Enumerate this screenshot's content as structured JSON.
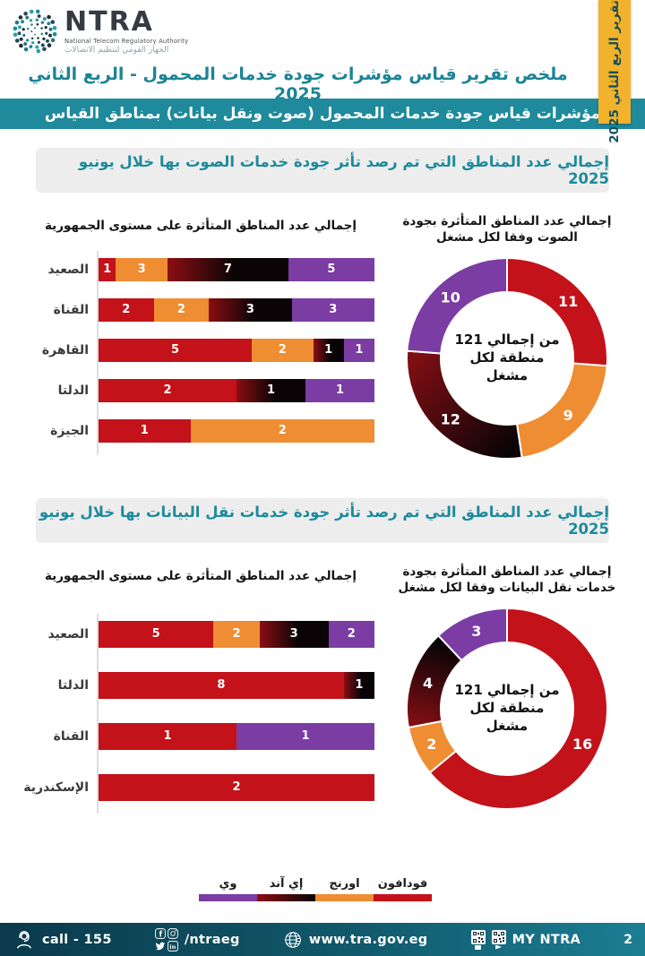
{
  "header": {
    "logo_name": "NTRA",
    "logo_sub_en": "National Telecom Regulatory Authority",
    "logo_sub_ar": "الجهاز القومي لتنظيم الاتصالات",
    "ribbon": "تقرير الربع الثاني 2025",
    "title": "ملخص تقرير قياس مؤشرات جودة خدمات المحمول - الربع الثاني 2025",
    "banner": "مؤشرات قياس جودة خدمات المحمول (صوت ونقل بيانات)  بمناطق القياس"
  },
  "operators": [
    {
      "id": "vodafone",
      "label": "فودافون",
      "color": "#c3121a"
    },
    {
      "id": "orange",
      "label": "اورنج",
      "color": "#ef8d33"
    },
    {
      "id": "eand",
      "label": "إي آند",
      "color_from": "#8b0e13",
      "color_to": "#0a0406"
    },
    {
      "id": "we",
      "label": "وي",
      "color": "#7b3da3"
    }
  ],
  "sections": [
    {
      "banner": "إجمالي عدد المناطق التي تم رصد تأثر جودة خدمات الصوت بها خلال يونيو 2025",
      "bar_title": "إجمالي عدد المناطق المتأثرة على مستوى الجمهورية",
      "donut_title": "إجمالي عدد المناطق المتأثرة بجودة\nالصوت وفقا لكل مشغل",
      "donut_center": "من إجمالي 121\nمنطقة لكل\nمشغل",
      "bars": [
        {
          "label": "الصعيد",
          "segs": [
            {
              "op": "vodafone",
              "v": 1
            },
            {
              "op": "orange",
              "v": 3
            },
            {
              "op": "eand",
              "v": 7
            },
            {
              "op": "we",
              "v": 5
            }
          ]
        },
        {
          "label": "القناة",
          "segs": [
            {
              "op": "vodafone",
              "v": 2
            },
            {
              "op": "orange",
              "v": 2
            },
            {
              "op": "eand",
              "v": 3
            },
            {
              "op": "we",
              "v": 3
            }
          ]
        },
        {
          "label": "القاهرة",
          "segs": [
            {
              "op": "vodafone",
              "v": 5
            },
            {
              "op": "orange",
              "v": 2
            },
            {
              "op": "eand",
              "v": 1
            },
            {
              "op": "we",
              "v": 1
            }
          ]
        },
        {
          "label": "الدلتا",
          "segs": [
            {
              "op": "vodafone",
              "v": 2
            },
            {
              "op": "eand",
              "v": 1
            },
            {
              "op": "we",
              "v": 1
            }
          ]
        },
        {
          "label": "الجيزة",
          "segs": [
            {
              "op": "vodafone",
              "v": 1
            },
            {
              "op": "orange",
              "v": 2
            }
          ]
        }
      ],
      "donut": [
        {
          "op": "vodafone",
          "v": 11
        },
        {
          "op": "orange",
          "v": 9
        },
        {
          "op": "eand",
          "v": 12,
          "grad": [
            "#0a0406",
            "#7d0e13"
          ]
        },
        {
          "op": "we",
          "v": 10
        }
      ]
    },
    {
      "banner": "إجمالي عدد المناطق التي تم رصد تأثر جودة خدمات نقل البيانات بها خلال يونيو 2025",
      "bar_title": "إجمالي عدد المناطق المتأثرة على مستوى الجمهورية",
      "donut_title": "إجمالي عدد المناطق المتأثرة بجودة\nخدمات نقل البيانات وفقا لكل مشغل",
      "donut_center": "من إجمالي 121\nمنطقة لكل\nمشغل",
      "bars": [
        {
          "label": "الصعيد",
          "segs": [
            {
              "op": "vodafone",
              "v": 5
            },
            {
              "op": "orange",
              "v": 2
            },
            {
              "op": "eand",
              "v": 3
            },
            {
              "op": "we",
              "v": 2
            }
          ]
        },
        {
          "label": "الدلتا",
          "segs": [
            {
              "op": "vodafone",
              "v": 8
            },
            {
              "op": "eand",
              "v": 1
            }
          ]
        },
        {
          "label": "القناة",
          "segs": [
            {
              "op": "vodafone",
              "v": 1
            },
            {
              "op": "we",
              "v": 1
            }
          ]
        },
        {
          "label": "الإسكندرية",
          "segs": [
            {
              "op": "vodafone",
              "v": 2
            }
          ]
        }
      ],
      "donut": [
        {
          "op": "vodafone",
          "v": 16
        },
        {
          "op": "orange",
          "v": 2
        },
        {
          "op": "eand",
          "v": 4,
          "grad": [
            "#7d0e13",
            "#0a0406"
          ]
        },
        {
          "op": "we",
          "v": 3
        }
      ]
    }
  ],
  "legend": [
    {
      "op": "we",
      "label": "وي"
    },
    {
      "op": "eand",
      "label": "إي آند"
    },
    {
      "op": "orange",
      "label": "اورنج"
    },
    {
      "op": "vodafone",
      "label": "فودافون"
    }
  ],
  "footer": {
    "call": "call - 155",
    "handle": "/ntraeg",
    "website": "www.tra.gov.eg",
    "app": "MY NTRA",
    "page": "2"
  },
  "chart_data": [
    {
      "type": "bar",
      "subtype": "stacked-horizontal-100pct",
      "title": "إجمالي عدد المناطق المتأثرة على مستوى الجمهورية",
      "group": "جودة خدمات الصوت - يونيو 2025",
      "categories": [
        "الصعيد",
        "القناة",
        "القاهرة",
        "الدلتا",
        "الجيزة"
      ],
      "series": [
        {
          "name": "فودافون",
          "values": [
            1,
            2,
            5,
            2,
            1
          ]
        },
        {
          "name": "اورنج",
          "values": [
            3,
            2,
            2,
            0,
            2
          ]
        },
        {
          "name": "إي آند",
          "values": [
            7,
            3,
            1,
            1,
            0
          ]
        },
        {
          "name": "وي",
          "values": [
            5,
            3,
            1,
            1,
            0
          ]
        }
      ]
    },
    {
      "type": "pie",
      "subtype": "donut",
      "title": "إجمالي عدد المناطق المتأثرة بجودة الصوت وفقا لكل مشغل",
      "labels": [
        "فودافون",
        "اورنج",
        "إي آند",
        "وي"
      ],
      "values": [
        11,
        9,
        12,
        10
      ],
      "center_note": "من إجمالي 121 منطقة لكل مشغل"
    },
    {
      "type": "bar",
      "subtype": "stacked-horizontal-100pct",
      "title": "إجمالي عدد المناطق المتأثرة على مستوى الجمهورية",
      "group": "جودة خدمات نقل البيانات - يونيو 2025",
      "categories": [
        "الصعيد",
        "الدلتا",
        "القناة",
        "الإسكندرية"
      ],
      "series": [
        {
          "name": "فودافون",
          "values": [
            5,
            8,
            1,
            2
          ]
        },
        {
          "name": "اورنج",
          "values": [
            2,
            0,
            0,
            0
          ]
        },
        {
          "name": "إي آند",
          "values": [
            3,
            1,
            0,
            0
          ]
        },
        {
          "name": "وي",
          "values": [
            2,
            0,
            1,
            0
          ]
        }
      ]
    },
    {
      "type": "pie",
      "subtype": "donut",
      "title": "إجمالي عدد المناطق المتأثرة بجودة خدمات نقل البيانات وفقا لكل مشغل",
      "labels": [
        "فودافون",
        "اورنج",
        "إي آند",
        "وي"
      ],
      "values": [
        16,
        2,
        4,
        3
      ],
      "center_note": "من إجمالي 121 منطقة لكل مشغل"
    }
  ]
}
